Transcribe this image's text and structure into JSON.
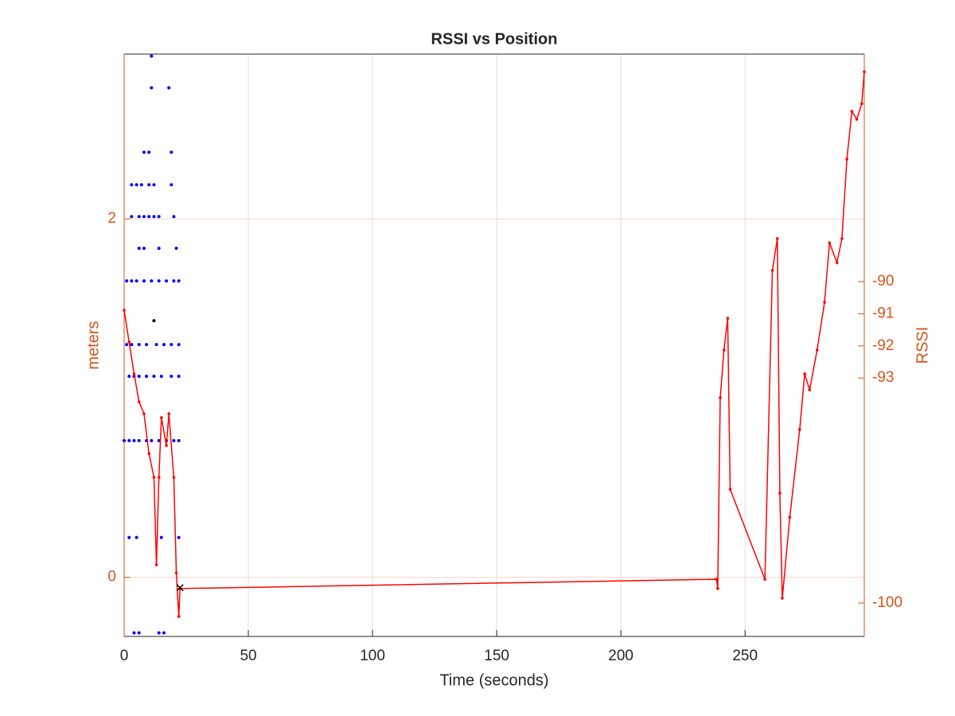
{
  "chart_data": {
    "type": "line",
    "title": "RSSI vs Position",
    "x_label": "Time (seconds)",
    "y_label": "meters",
    "y2_label": "RSSI",
    "xlim": [
      0,
      298
    ],
    "xticks": [
      0,
      50,
      100,
      150,
      200,
      250
    ],
    "ylim": [
      -0.33,
      2.92
    ],
    "yticks": [
      0,
      2
    ],
    "y2lim": [
      -101.04,
      -82.92
    ],
    "y2ticks": [
      -100,
      -93,
      -92,
      -91,
      -90
    ],
    "grid": true,
    "axis_color": "#d95319",
    "series": [
      {
        "color": "#0000ff",
        "style": "dots",
        "x": [
          11,
          11,
          18,
          8,
          10,
          19,
          3,
          5,
          7,
          10,
          12,
          19,
          3,
          6,
          8,
          10,
          12,
          14,
          20,
          6,
          8,
          14,
          21,
          1,
          3,
          5,
          8,
          11,
          14,
          17,
          20,
          22,
          1,
          3,
          6,
          9,
          13,
          16,
          19,
          22,
          2,
          4,
          6,
          9,
          12,
          15,
          19,
          22,
          0,
          2,
          4,
          6,
          9,
          11,
          14,
          17,
          20,
          22,
          2,
          5,
          15,
          22,
          4,
          6,
          14,
          16
        ],
        "values": [
          2.909,
          2.732,
          2.732,
          2.372,
          2.372,
          2.372,
          2.191,
          2.191,
          2.191,
          2.191,
          2.191,
          2.191,
          2.013,
          2.013,
          2.013,
          2.013,
          2.013,
          2.013,
          2.013,
          1.836,
          1.836,
          1.836,
          1.836,
          1.654,
          1.654,
          1.654,
          1.654,
          1.654,
          1.654,
          1.654,
          1.654,
          1.654,
          1.299,
          1.299,
          1.299,
          1.299,
          1.299,
          1.299,
          1.299,
          1.299,
          1.122,
          1.122,
          1.122,
          1.122,
          1.122,
          1.122,
          1.122,
          1.122,
          0.763,
          0.763,
          0.763,
          0.763,
          0.763,
          0.763,
          0.763,
          0.763,
          0.763,
          0.763,
          0.222,
          0.222,
          0.222,
          0.222,
          -0.31,
          -0.31,
          -0.31,
          -0.31
        ]
      },
      {
        "color": "#ff0000",
        "style": "line",
        "axis": "y2",
        "x": [
          0,
          2,
          4,
          6,
          8,
          10,
          12,
          13,
          14,
          15,
          17,
          18,
          20,
          21,
          22,
          22.5,
          238.5,
          239,
          240,
          241.5,
          243,
          244,
          258,
          261,
          263,
          264,
          265,
          268,
          272,
          274,
          276,
          279,
          282,
          284,
          287,
          289,
          291,
          293,
          295,
          297,
          298
        ],
        "values": [
          -90.89,
          -91.88,
          -92.87,
          -93.74,
          -94.11,
          -95.35,
          -96.09,
          -98.81,
          -96.09,
          -94.23,
          -95.1,
          -94.11,
          -96.09,
          -99.06,
          -100.42,
          -99.55,
          -99.26,
          -99.55,
          -93.61,
          -92.13,
          -91.14,
          -96.46,
          -99.26,
          -89.65,
          -88.66,
          -96.58,
          -99.85,
          -97.33,
          -94.6,
          -92.87,
          -93.37,
          -92.13,
          -90.64,
          -88.79,
          -89.41,
          -88.66,
          -86.19,
          -84.7,
          -84.95,
          -84.46,
          -83.47
        ]
      },
      {
        "color": "#000000",
        "style": "dots",
        "x": [
          12
        ],
        "values": [
          1.432
        ]
      },
      {
        "color": "#000000",
        "style": "cross",
        "x": [
          22.5
        ],
        "values": [
          -0.058
        ]
      }
    ]
  }
}
